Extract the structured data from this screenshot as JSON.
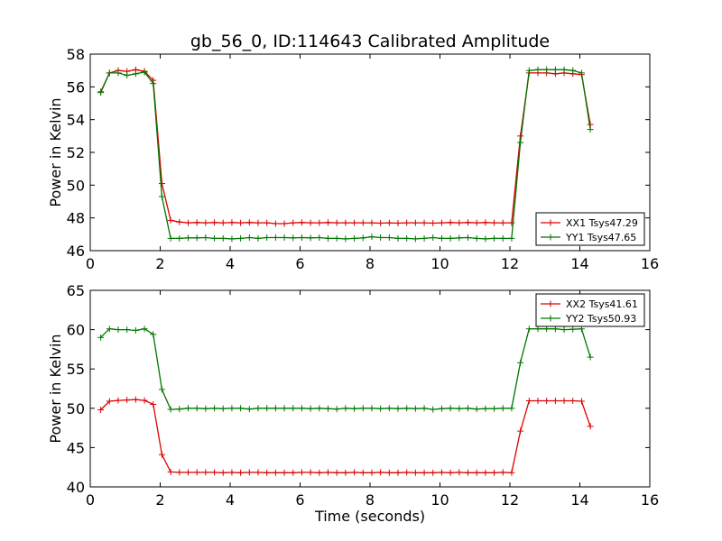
{
  "title": "gb_56_0, ID:114643 Calibrated Amplitude",
  "chart_data": [
    {
      "type": "line",
      "xlabel": "",
      "ylabel": "Power in Kelvin",
      "xlim": [
        0,
        16
      ],
      "ylim": [
        46,
        58
      ],
      "xticks": [
        0,
        2,
        4,
        6,
        8,
        10,
        12,
        14,
        16
      ],
      "yticks": [
        46,
        48,
        50,
        52,
        54,
        56,
        58
      ],
      "legend_position": "lower-right",
      "x": [
        0.3,
        0.55,
        0.8,
        1.05,
        1.3,
        1.55,
        1.8,
        2.05,
        2.3,
        2.55,
        2.8,
        3.05,
        3.3,
        3.55,
        3.8,
        4.05,
        4.3,
        4.55,
        4.8,
        5.05,
        5.3,
        5.55,
        5.8,
        6.05,
        6.3,
        6.55,
        6.8,
        7.05,
        7.3,
        7.55,
        7.8,
        8.05,
        8.3,
        8.55,
        8.8,
        9.05,
        9.3,
        9.55,
        9.8,
        10.05,
        10.3,
        10.55,
        10.8,
        11.05,
        11.3,
        11.55,
        11.8,
        12.05,
        12.3,
        12.55,
        12.8,
        13.05,
        13.3,
        13.55,
        13.8,
        14.05,
        14.3
      ],
      "series": [
        {
          "name": "XX1 Tsys47.29",
          "color": "#dd0000",
          "values": [
            55.7,
            56.85,
            57.0,
            56.95,
            57.05,
            56.95,
            56.4,
            50.1,
            47.85,
            47.75,
            47.7,
            47.72,
            47.7,
            47.72,
            47.7,
            47.72,
            47.7,
            47.72,
            47.7,
            47.7,
            47.65,
            47.65,
            47.7,
            47.72,
            47.7,
            47.7,
            47.72,
            47.7,
            47.7,
            47.7,
            47.7,
            47.7,
            47.68,
            47.7,
            47.68,
            47.7,
            47.7,
            47.7,
            47.68,
            47.7,
            47.72,
            47.7,
            47.72,
            47.7,
            47.72,
            47.7,
            47.7,
            47.7,
            53.0,
            56.85,
            56.85,
            56.85,
            56.8,
            56.85,
            56.8,
            56.75,
            53.7
          ]
        },
        {
          "name": "YY1 Tsys47.65",
          "color": "#007700",
          "values": [
            55.65,
            56.85,
            56.85,
            56.7,
            56.8,
            56.9,
            56.2,
            49.3,
            46.75,
            46.75,
            46.78,
            46.78,
            46.8,
            46.75,
            46.75,
            46.72,
            46.75,
            46.8,
            46.75,
            46.8,
            46.8,
            46.8,
            46.78,
            46.8,
            46.78,
            46.8,
            46.75,
            46.75,
            46.72,
            46.75,
            46.78,
            46.85,
            46.8,
            46.8,
            46.75,
            46.75,
            46.72,
            46.75,
            46.8,
            46.75,
            46.75,
            46.78,
            46.8,
            46.75,
            46.72,
            46.75,
            46.75,
            46.75,
            52.6,
            57.0,
            57.05,
            57.05,
            57.05,
            57.05,
            57.0,
            56.85,
            53.4
          ]
        }
      ]
    },
    {
      "type": "line",
      "xlabel": "Time (seconds)",
      "ylabel": "Power in Kelvin",
      "xlim": [
        0,
        16
      ],
      "ylim": [
        40,
        65
      ],
      "xticks": [
        0,
        2,
        4,
        6,
        8,
        10,
        12,
        14,
        16
      ],
      "yticks": [
        40,
        45,
        50,
        55,
        60,
        65
      ],
      "legend_position": "upper-right",
      "x": [
        0.3,
        0.55,
        0.8,
        1.05,
        1.3,
        1.55,
        1.8,
        2.05,
        2.3,
        2.55,
        2.8,
        3.05,
        3.3,
        3.55,
        3.8,
        4.05,
        4.3,
        4.55,
        4.8,
        5.05,
        5.3,
        5.55,
        5.8,
        6.05,
        6.3,
        6.55,
        6.8,
        7.05,
        7.3,
        7.55,
        7.8,
        8.05,
        8.3,
        8.55,
        8.8,
        9.05,
        9.3,
        9.55,
        9.8,
        10.05,
        10.3,
        10.55,
        10.8,
        11.05,
        11.3,
        11.55,
        11.8,
        12.05,
        12.3,
        12.55,
        12.8,
        13.05,
        13.3,
        13.55,
        13.8,
        14.05,
        14.3
      ],
      "series": [
        {
          "name": "XX2 Tsys41.61",
          "color": "#dd0000",
          "values": [
            49.8,
            50.9,
            51.0,
            51.05,
            51.1,
            51.0,
            50.5,
            44.1,
            41.9,
            41.85,
            41.85,
            41.85,
            41.85,
            41.85,
            41.8,
            41.85,
            41.8,
            41.85,
            41.85,
            41.8,
            41.8,
            41.8,
            41.8,
            41.85,
            41.85,
            41.8,
            41.85,
            41.8,
            41.8,
            41.85,
            41.8,
            41.8,
            41.85,
            41.8,
            41.8,
            41.85,
            41.8,
            41.8,
            41.8,
            41.85,
            41.8,
            41.85,
            41.8,
            41.8,
            41.8,
            41.8,
            41.85,
            41.8,
            47.1,
            50.95,
            50.95,
            50.95,
            50.95,
            50.95,
            50.95,
            50.9,
            47.7
          ]
        },
        {
          "name": "YY2 Tsys50.93",
          "color": "#007700",
          "values": [
            59.0,
            60.1,
            60.0,
            60.0,
            59.9,
            60.1,
            59.4,
            52.4,
            49.85,
            49.9,
            50.0,
            50.0,
            49.95,
            50.0,
            49.95,
            50.0,
            50.0,
            49.9,
            50.0,
            50.0,
            50.0,
            50.0,
            50.0,
            50.0,
            49.95,
            50.0,
            49.95,
            49.9,
            50.0,
            49.95,
            50.0,
            50.0,
            49.95,
            50.0,
            49.95,
            50.0,
            49.95,
            50.0,
            49.85,
            49.95,
            50.0,
            49.95,
            50.0,
            49.9,
            49.95,
            49.95,
            50.0,
            50.0,
            55.8,
            60.1,
            60.1,
            60.1,
            60.1,
            60.0,
            60.05,
            60.1,
            56.5
          ]
        }
      ]
    }
  ]
}
